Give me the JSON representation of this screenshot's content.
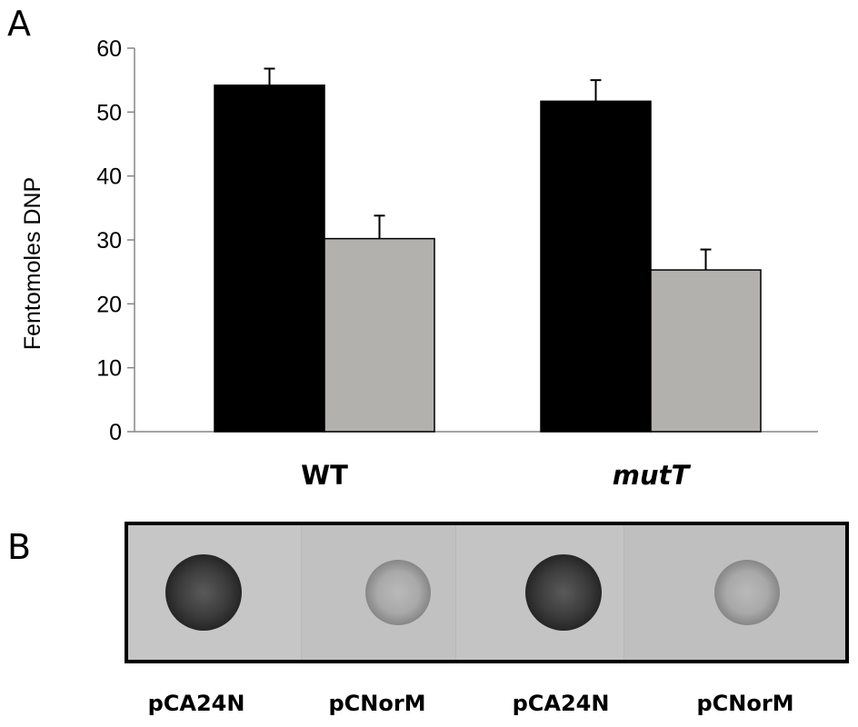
{
  "panel_a": {
    "letter": "A",
    "chart_data": {
      "type": "bar",
      "ylabel": "Fentomoles DNP",
      "ylim": [
        0,
        60
      ],
      "yticks": [
        0,
        10,
        20,
        30,
        40,
        50,
        60
      ],
      "categories": [
        "WT",
        "mutT"
      ],
      "series": [
        {
          "values": [
            54.2,
            51.7
          ],
          "errors": [
            2.6,
            3.3
          ],
          "color": "#000000"
        },
        {
          "values": [
            30.2,
            25.3
          ],
          "errors": [
            3.6,
            3.2
          ],
          "color": "#b3b1ae"
        }
      ]
    }
  },
  "panel_b": {
    "letter": "B",
    "lanes": [
      {
        "label": "pCA24N",
        "intensity": "strong"
      },
      {
        "label": "pCNorM",
        "intensity": "weak"
      },
      {
        "label": "pCA24N",
        "intensity": "strong"
      },
      {
        "label": "pCNorM",
        "intensity": "weak"
      }
    ]
  }
}
